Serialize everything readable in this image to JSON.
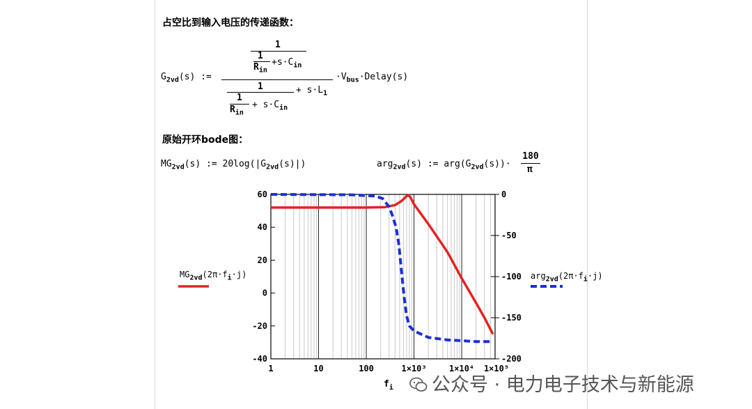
{
  "section1": {
    "heading": "占空比到输入电压的传递函数："
  },
  "formula1": {
    "lhs": "G",
    "lhs_sub": "2vd",
    "lhs_arg": "(s) :=",
    "num_top": "1",
    "num_inner_one": "1",
    "num_inner_den": "R",
    "num_inner_den_sub": "in",
    "num_inner_tail": "+s·C",
    "num_inner_tail_sub": "in",
    "den_one": "1",
    "den_inner_tail": "+ s·L",
    "den_inner_tail_sub": "1",
    "den_bottom_R": "R",
    "den_bottom_R_sub": "in",
    "den_bottom_tail": "+ s·C",
    "den_bottom_tail_sub": "in",
    "rhs": "·V",
    "rhs_sub": "bus",
    "rhs_tail": "·Delay(s)"
  },
  "section2": {
    "heading": "原始开环bode图："
  },
  "formula2": {
    "mg": "MG",
    "mg_sub": "2vd",
    "mg_def": "(s) := 20log(|G",
    "mg_def_sub": "2vd",
    "mg_def_tail": "(s)|)",
    "arg": "arg",
    "arg_sub": "2vd",
    "arg_def": "(s) := arg(G",
    "arg_def_sub": "2vd",
    "arg_def_tail": "(s))·",
    "frac_num": "180",
    "frac_den": "π"
  },
  "legend": {
    "left_label": "MG",
    "left_label_sub": "2vd",
    "left_label_tail": "(2π·f",
    "left_label_tail_sub": "i",
    "left_label_end": "·j)",
    "right_label": "arg",
    "right_label_sub": "2vd",
    "right_label_tail": "(2π·f",
    "right_label_tail_sub": "i",
    "right_label_end": "·j)"
  },
  "watermark": {
    "text": "公众号 · 电力电子技术与新能源"
  },
  "chart_data": {
    "type": "line",
    "x_scale": "log",
    "xlim": [
      1,
      50000
    ],
    "xlabel": "f",
    "xlabel_sub": "i",
    "x_ticks": [
      {
        "value": 1,
        "label": "1"
      },
      {
        "value": 10,
        "label": "10"
      },
      {
        "value": 100,
        "label": "100"
      },
      {
        "value": 1000,
        "label": "1×10³"
      },
      {
        "value": 10000,
        "label": "1×10⁴"
      },
      {
        "value": 100000,
        "label": "1×10⁵"
      }
    ],
    "ylim_left": [
      -40,
      60
    ],
    "y_ticks_left": [
      60,
      40,
      20,
      0,
      -20,
      -40
    ],
    "ylim_right": [
      -200,
      0
    ],
    "y_ticks_right": [
      0,
      -50,
      -100,
      -150,
      -200
    ],
    "grid": true,
    "series": [
      {
        "axis": "left",
        "style": "solid",
        "color": "#e52222",
        "points": [
          [
            1,
            52
          ],
          [
            10,
            52
          ],
          [
            100,
            52
          ],
          [
            250,
            52.3
          ],
          [
            400,
            53.5
          ],
          [
            550,
            56
          ],
          [
            700,
            59
          ],
          [
            780,
            59.5
          ],
          [
            870,
            57.5
          ],
          [
            1000,
            54
          ],
          [
            1500,
            47
          ],
          [
            2000,
            42
          ],
          [
            5000,
            25
          ],
          [
            10000,
            9
          ],
          [
            20000,
            -6
          ],
          [
            30000,
            -15
          ],
          [
            45000,
            -25
          ]
        ]
      },
      {
        "axis": "right",
        "style": "dashed",
        "color": "#1a2fd6",
        "points": [
          [
            1,
            0
          ],
          [
            50,
            -0.5
          ],
          [
            150,
            -2
          ],
          [
            220,
            -5
          ],
          [
            300,
            -15
          ],
          [
            350,
            -25
          ],
          [
            420,
            -40
          ],
          [
            480,
            -60
          ],
          [
            550,
            -95
          ],
          [
            620,
            -125
          ],
          [
            700,
            -148
          ],
          [
            800,
            -160
          ],
          [
            1000,
            -166
          ],
          [
            2000,
            -174
          ],
          [
            5000,
            -177
          ],
          [
            10000,
            -178
          ],
          [
            20000,
            -179
          ],
          [
            45000,
            -179
          ]
        ]
      }
    ]
  }
}
